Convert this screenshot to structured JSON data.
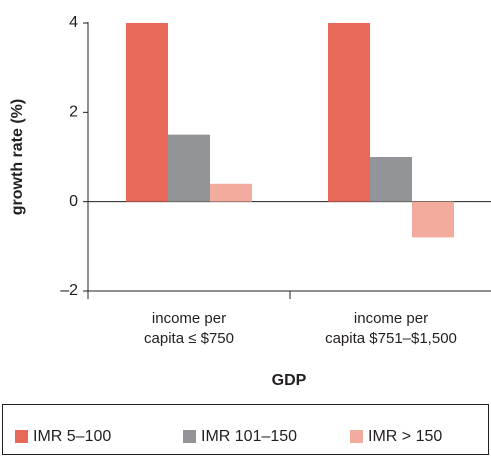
{
  "chart_data": {
    "type": "bar",
    "categories": [
      "income per\ncapita ≤ $750",
      "income per\ncapita $751–$1,500"
    ],
    "series": [
      {
        "name": "IMR 5–100",
        "color": "#e8685a",
        "values": [
          4,
          4
        ]
      },
      {
        "name": "IMR 101–150",
        "color": "#929497",
        "values": [
          1.5,
          1.0
        ]
      },
      {
        "name": "IMR > 150",
        "color": "#f2ab9c",
        "values": [
          0.4,
          -0.8
        ]
      }
    ],
    "xlabel": "GDP",
    "ylabel": "growth rate (%)",
    "ylim": [
      -2,
      4
    ],
    "yticks": [
      {
        "value": -2,
        "label": "–2"
      },
      0,
      2,
      4
    ],
    "legend": "bottom"
  }
}
